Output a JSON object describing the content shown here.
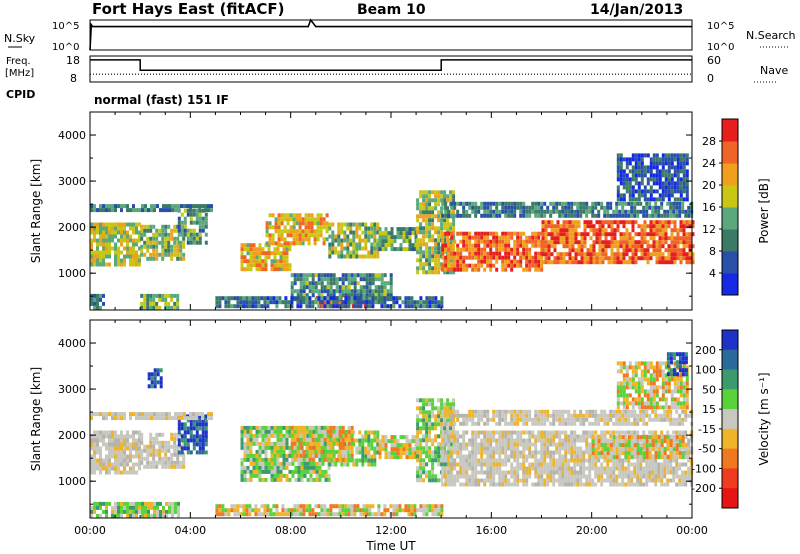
{
  "header": {
    "radar": "Fort Hays East (fitACF)",
    "beam": "Beam 10",
    "date": "14/Jan/2013"
  },
  "noise_panel": {
    "left_label": "N.Sky",
    "left_ticks": [
      "10^5",
      "10^0"
    ],
    "right_label": "N.Search",
    "right_ticks": [
      "10^5",
      "10^0"
    ]
  },
  "freq_panel": {
    "left_label_1": "Freq.",
    "left_label_2": "[MHz]",
    "left_ticks": [
      "18",
      "8"
    ],
    "right_label": "Nave",
    "right_ticks": [
      "60",
      "0"
    ]
  },
  "cpid": {
    "label": "CPID",
    "value": "normal (fast) 151 IF"
  },
  "chart_data": [
    {
      "type": "line",
      "panel": "noise",
      "x_unit": "hours UT",
      "ylim_log10": [
        0,
        5
      ],
      "series": [
        {
          "name": "N.Sky",
          "style": "solid",
          "x": [
            0,
            0.05,
            0.1,
            1,
            4,
            8,
            8.7,
            8.8,
            9,
            12,
            16,
            20,
            24
          ],
          "y_log10": [
            0,
            4.2,
            3.9,
            3.9,
            3.9,
            3.9,
            3.9,
            5.1,
            3.9,
            3.9,
            3.9,
            3.9,
            3.9
          ]
        }
      ]
    },
    {
      "type": "line",
      "panel": "frequency",
      "x_unit": "hours UT",
      "ylim": [
        8,
        18
      ],
      "y2lim": [
        0,
        60
      ],
      "series": [
        {
          "name": "Freq.",
          "style": "solid",
          "x": [
            0,
            2,
            2,
            14,
            14,
            24
          ],
          "y": [
            16.5,
            16.5,
            12.5,
            12.5,
            16.5,
            16.5
          ]
        },
        {
          "name": "Nave",
          "style": "dotted",
          "axis": "right",
          "x": [
            0,
            24
          ],
          "y": [
            18,
            18
          ]
        }
      ]
    },
    {
      "type": "heatmap",
      "panel": "power",
      "xlabel": "",
      "ylabel": "Slant Range [km]",
      "xlim": [
        0,
        24
      ],
      "ylim": [
        200,
        4500
      ],
      "y_ticks": [
        1000,
        2000,
        3000,
        4000
      ],
      "colorbar": {
        "label": "Power [dB]",
        "ticks": [
          "4",
          "8",
          "12",
          "16",
          "20",
          "24",
          "28"
        ],
        "colors": [
          "#1428e6",
          "#2850a8",
          "#3a7a66",
          "#5aa87c",
          "#c8c814",
          "#f0a01e",
          "#f06428",
          "#e61e1e"
        ]
      },
      "echo_regions": [
        {
          "t0": 0.0,
          "t1": 2.0,
          "r0": 1200,
          "r1": 2100,
          "level": 0.55
        },
        {
          "t0": 2.0,
          "t1": 3.7,
          "r0": 1300,
          "r1": 2050,
          "level": 0.5
        },
        {
          "t0": 0.0,
          "t1": 4.8,
          "r0": 2350,
          "r1": 2500,
          "level": 0.3
        },
        {
          "t0": 3.5,
          "t1": 4.6,
          "r0": 1700,
          "r1": 2400,
          "level": 0.4
        },
        {
          "t0": 2.0,
          "t1": 3.5,
          "r0": 250,
          "r1": 550,
          "level": 0.45
        },
        {
          "t0": 0.0,
          "t1": 0.5,
          "r0": 250,
          "r1": 550,
          "level": 0.3
        },
        {
          "t0": 6.0,
          "t1": 8.0,
          "r0": 1050,
          "r1": 1650,
          "level": 0.65
        },
        {
          "t0": 7.0,
          "t1": 9.5,
          "r0": 1650,
          "r1": 2300,
          "level": 0.65
        },
        {
          "t0": 9.5,
          "t1": 11.5,
          "r0": 1400,
          "r1": 2100,
          "level": 0.5
        },
        {
          "t0": 11.5,
          "t1": 13.0,
          "r0": 1500,
          "r1": 2000,
          "level": 0.4
        },
        {
          "t0": 9.0,
          "t1": 11.0,
          "r0": 250,
          "r1": 500,
          "level": 0.9
        },
        {
          "t0": 8.0,
          "t1": 12.0,
          "r0": 400,
          "r1": 1000,
          "level": 0.35
        },
        {
          "t0": 13.0,
          "t1": 14.5,
          "r0": 1000,
          "r1": 2800,
          "level": 0.5
        },
        {
          "t0": 14.0,
          "t1": 18.0,
          "r0": 1100,
          "r1": 1900,
          "level": 0.82
        },
        {
          "t0": 18.0,
          "t1": 24.0,
          "r0": 1200,
          "r1": 2150,
          "level": 0.82
        },
        {
          "t0": 14.0,
          "t1": 24.0,
          "r0": 2250,
          "r1": 2550,
          "level": 0.3
        },
        {
          "t0": 21.0,
          "t1": 23.8,
          "r0": 2600,
          "r1": 3600,
          "level": 0.2
        },
        {
          "t0": 5.0,
          "t1": 14.0,
          "r0": 250,
          "r1": 500,
          "level": 0.25
        }
      ]
    },
    {
      "type": "heatmap",
      "panel": "velocity",
      "xlabel": "Time UT",
      "ylabel": "Slant Range [km]",
      "xlim": [
        0,
        24
      ],
      "ylim": [
        200,
        4500
      ],
      "y_ticks": [
        1000,
        2000,
        3000,
        4000
      ],
      "x_tick_labels": [
        "00:00",
        "04:00",
        "08:00",
        "12:00",
        "16:00",
        "20:00",
        "00:00"
      ],
      "colorbar": {
        "label": "Velocity [m s⁻¹]",
        "ticks": [
          "200",
          "100",
          "50",
          "15",
          "-15",
          "-50",
          "-100",
          "-200"
        ],
        "colors": [
          "#1e32c8",
          "#2a6a9a",
          "#3c9a6e",
          "#5ad23c",
          "#c8c8c0",
          "#f0b428",
          "#f07820",
          "#f03c1e",
          "#e61414"
        ]
      },
      "echo_regions": [
        {
          "t0": 0.0,
          "t1": 2.0,
          "r0": 1200,
          "r1": 2100,
          "cat": "gray"
        },
        {
          "t0": 2.0,
          "t1": 3.7,
          "r0": 1300,
          "r1": 2050,
          "cat": "gray"
        },
        {
          "t0": 3.5,
          "t1": 4.6,
          "r0": 1600,
          "r1": 2450,
          "cat": "blue"
        },
        {
          "t0": 2.3,
          "t1": 2.8,
          "r0": 3100,
          "r1": 3450,
          "cat": "blue"
        },
        {
          "t0": 0.0,
          "t1": 4.8,
          "r0": 2350,
          "r1": 2500,
          "cat": "gray"
        },
        {
          "t0": 0.0,
          "t1": 3.5,
          "r0": 250,
          "r1": 550,
          "cat": "green"
        },
        {
          "t0": 6.0,
          "t1": 9.5,
          "r0": 1050,
          "r1": 2200,
          "cat": "green"
        },
        {
          "t0": 9.5,
          "t1": 11.5,
          "r0": 1400,
          "r1": 2100,
          "cat": "green"
        },
        {
          "t0": 8.0,
          "t1": 10.5,
          "r0": 1500,
          "r1": 2200,
          "cat": "orange"
        },
        {
          "t0": 11.5,
          "t1": 13.0,
          "r0": 1500,
          "r1": 2000,
          "cat": "orange"
        },
        {
          "t0": 13.0,
          "t1": 14.5,
          "r0": 1000,
          "r1": 2800,
          "cat": "green"
        },
        {
          "t0": 14.0,
          "t1": 24.0,
          "r0": 950,
          "r1": 2100,
          "cat": "gray"
        },
        {
          "t0": 14.0,
          "t1": 24.0,
          "r0": 2250,
          "r1": 2550,
          "cat": "gray"
        },
        {
          "t0": 20.0,
          "t1": 23.8,
          "r0": 1500,
          "r1": 2000,
          "cat": "orange"
        },
        {
          "t0": 5.0,
          "t1": 14.0,
          "r0": 250,
          "r1": 500,
          "cat": "orange"
        },
        {
          "t0": 21.0,
          "t1": 23.8,
          "r0": 2600,
          "r1": 3600,
          "cat": "orange"
        },
        {
          "t0": 23.0,
          "t1": 23.8,
          "r0": 3300,
          "r1": 3800,
          "cat": "blue"
        }
      ]
    }
  ]
}
